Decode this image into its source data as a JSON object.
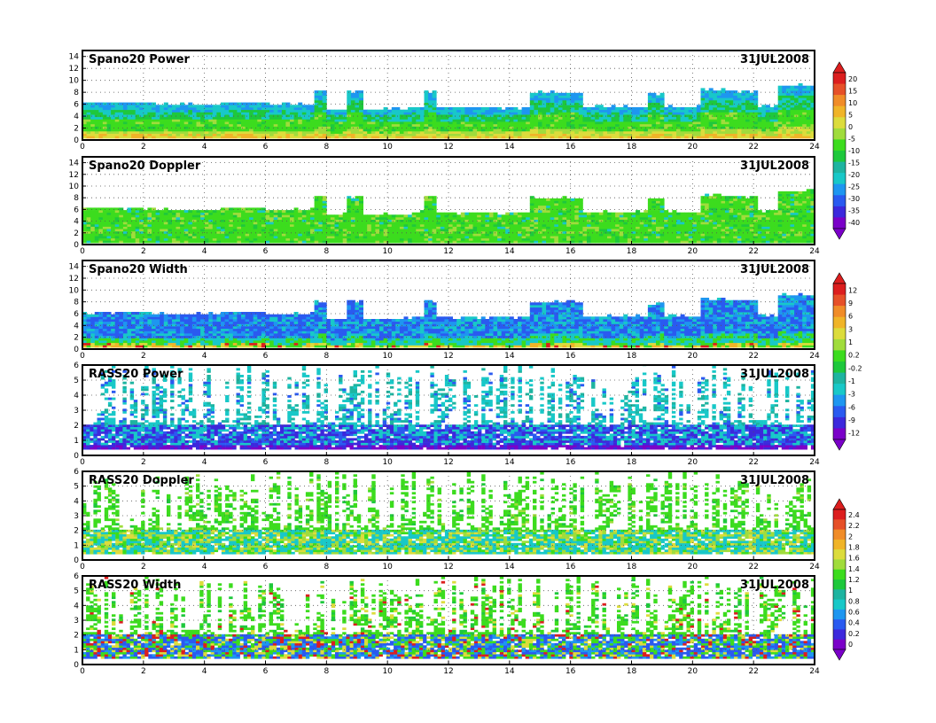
{
  "palette": {
    "power": [
      "#7a00c8",
      "#3c28dc",
      "#2a5af0",
      "#1e96f0",
      "#18c8c8",
      "#1eb4a0",
      "#1ec83c",
      "#3cdc1e",
      "#a0dc3c",
      "#dcdc3c",
      "#f0b428",
      "#f08c28",
      "#e65028",
      "#dc1e1e"
    ],
    "ras_power": [
      "#7a00c8",
      "#3c28dc",
      "#2a5af0",
      "#1e96f0",
      "#18c8c8",
      "#1eb4a0",
      "#1ec83c",
      "#3cdc1e",
      "#a0dc3c",
      "#dcdc3c",
      "#f0b428",
      "#f08c28",
      "#e65028",
      "#dc1e1e"
    ]
  },
  "colorbars": [
    {
      "id": "cb-power",
      "labels": [
        "20",
        "15",
        "10",
        "5",
        "0",
        "-5",
        "-10",
        "-15",
        "-20",
        "-25",
        "-30",
        "-35",
        "-40"
      ]
    },
    {
      "id": "cb-width",
      "labels": [
        "12",
        "9",
        "6",
        "3",
        "1",
        "0.2",
        "-0.2",
        "-1",
        "-3",
        "-6",
        "-9",
        "-12"
      ]
    },
    {
      "id": "cb-rass",
      "labels": [
        "2.4",
        "2.2",
        "2",
        "1.8",
        "1.6",
        "1.4",
        "1.2",
        "1",
        "0.8",
        "0.6",
        "0.4",
        "0.2",
        "0"
      ]
    }
  ],
  "chart_data": [
    {
      "type": "heatmap",
      "title": "Spano20 Power",
      "date": "31JUL2008",
      "xlim": [
        0,
        24
      ],
      "ylim": [
        0,
        15
      ],
      "xticks": [
        "0",
        "2",
        "4",
        "6",
        "8",
        "10",
        "12",
        "14",
        "16",
        "18",
        "20",
        "22",
        "24"
      ],
      "yticks": [
        "0",
        "2",
        "4",
        "6",
        "8",
        "10",
        "12",
        "14"
      ],
      "grid": true,
      "data_top_km": [
        [
          0,
          6
        ],
        [
          2.3,
          5.8
        ],
        [
          4.5,
          6.1
        ],
        [
          6,
          5.8
        ],
        [
          7.5,
          8
        ],
        [
          8,
          5
        ],
        [
          8.6,
          8
        ],
        [
          9.2,
          5
        ],
        [
          10.8,
          5.4
        ],
        [
          11.2,
          8
        ],
        [
          11.5,
          5.2
        ],
        [
          14.6,
          7.8
        ],
        [
          16.3,
          5.4
        ],
        [
          18.5,
          7.6
        ],
        [
          19,
          5.4
        ],
        [
          20.2,
          8.3
        ],
        [
          21,
          8
        ],
        [
          22.1,
          5.5
        ],
        [
          22.8,
          9
        ],
        [
          24,
          8.5
        ]
      ]
    },
    {
      "type": "heatmap",
      "title": "Spano20 Doppler",
      "date": "31JUL2008",
      "xlim": [
        0,
        24
      ],
      "ylim": [
        0,
        15
      ],
      "xticks": [
        "0",
        "2",
        "4",
        "6",
        "8",
        "10",
        "12",
        "14",
        "16",
        "18",
        "20",
        "22",
        "24"
      ],
      "yticks": [
        "0",
        "2",
        "4",
        "6",
        "8",
        "10",
        "12",
        "14"
      ],
      "grid": true,
      "data_top_km": [
        [
          0,
          6
        ],
        [
          2.3,
          5.8
        ],
        [
          4.5,
          6.1
        ],
        [
          6,
          5.8
        ],
        [
          7.5,
          8
        ],
        [
          8,
          5
        ],
        [
          8.6,
          8
        ],
        [
          9.2,
          5
        ],
        [
          10.8,
          5.4
        ],
        [
          11.2,
          8
        ],
        [
          11.5,
          5.2
        ],
        [
          14.6,
          7.8
        ],
        [
          16.3,
          5.4
        ],
        [
          18.5,
          7.6
        ],
        [
          19,
          5.4
        ],
        [
          20.2,
          8.3
        ],
        [
          21,
          8
        ],
        [
          22.1,
          5.5
        ],
        [
          22.8,
          9
        ],
        [
          24,
          8.5
        ]
      ]
    },
    {
      "type": "heatmap",
      "title": "Spano20 Width",
      "date": "31JUL2008",
      "xlim": [
        0,
        24
      ],
      "ylim": [
        0,
        15
      ],
      "xticks": [
        "0",
        "2",
        "4",
        "6",
        "8",
        "10",
        "12",
        "14",
        "16",
        "18",
        "20",
        "22",
        "24"
      ],
      "yticks": [
        "0",
        "2",
        "4",
        "6",
        "8",
        "10",
        "12",
        "14"
      ],
      "grid": true,
      "data_top_km": [
        [
          0,
          6
        ],
        [
          2.3,
          5.8
        ],
        [
          4.5,
          6.1
        ],
        [
          6,
          5.8
        ],
        [
          7.5,
          8
        ],
        [
          8,
          5
        ],
        [
          8.6,
          8
        ],
        [
          9.2,
          5
        ],
        [
          10.8,
          5.4
        ],
        [
          11.2,
          8
        ],
        [
          11.5,
          5.2
        ],
        [
          14.6,
          7.8
        ],
        [
          16.3,
          5.4
        ],
        [
          18.5,
          7.6
        ],
        [
          19,
          5.4
        ],
        [
          20.2,
          8.3
        ],
        [
          21,
          8
        ],
        [
          22.1,
          5.5
        ],
        [
          22.8,
          9
        ],
        [
          24,
          8.5
        ]
      ]
    },
    {
      "type": "heatmap",
      "title": "RASS20 Power",
      "date": "31JUL2008",
      "xlim": [
        0,
        24
      ],
      "ylim": [
        0,
        6
      ],
      "xticks": [
        "0",
        "2",
        "4",
        "6",
        "8",
        "10",
        "12",
        "14",
        "16",
        "18",
        "20",
        "22",
        "24"
      ],
      "yticks": [
        "0",
        "1",
        "2",
        "3",
        "4",
        "5",
        "6"
      ],
      "grid": true
    },
    {
      "type": "heatmap",
      "title": "RASS20 Doppler",
      "date": "31JUL2008",
      "xlim": [
        0,
        24
      ],
      "ylim": [
        0,
        6
      ],
      "xticks": [
        "0",
        "2",
        "4",
        "6",
        "8",
        "10",
        "12",
        "14",
        "16",
        "18",
        "20",
        "22",
        "24"
      ],
      "yticks": [
        "0",
        "1",
        "2",
        "3",
        "4",
        "5",
        "6"
      ],
      "grid": true
    },
    {
      "type": "heatmap",
      "title": "RASS20 Width",
      "date": "31JUL2008",
      "xlim": [
        0,
        24
      ],
      "ylim": [
        0,
        6
      ],
      "xticks": [
        "0",
        "2",
        "4",
        "6",
        "8",
        "10",
        "12",
        "14",
        "16",
        "18",
        "20",
        "22",
        "24"
      ],
      "yticks": [
        "0",
        "1",
        "2",
        "3",
        "4",
        "5",
        "6"
      ],
      "grid": true
    }
  ]
}
